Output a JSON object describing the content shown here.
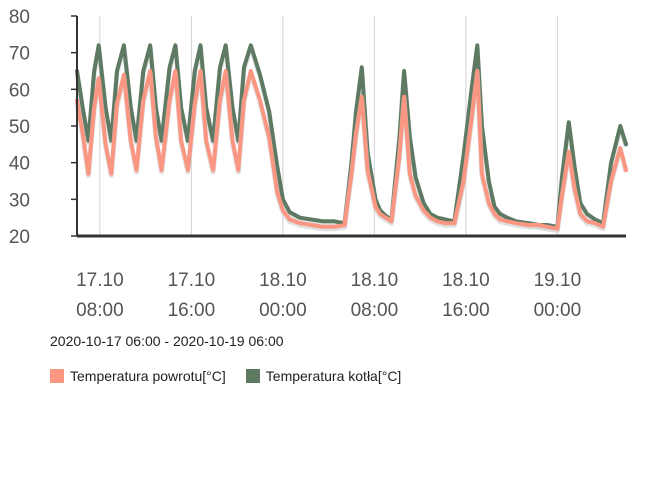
{
  "chart_data": {
    "type": "line",
    "title": "",
    "xlabel": "",
    "ylabel": "",
    "ylim": [
      20,
      80
    ],
    "yticks": [
      "20",
      "30",
      "40",
      "50",
      "60",
      "70",
      "80"
    ],
    "xlim": [
      0,
      48
    ],
    "xticks": [
      {
        "h": 2,
        "line1": "17.10",
        "line2": "08:00"
      },
      {
        "h": 10,
        "line1": "17.10",
        "line2": "16:00"
      },
      {
        "h": 18,
        "line1": "18.10",
        "line2": "00:00"
      },
      {
        "h": 26,
        "line1": "18.10",
        "line2": "08:00"
      },
      {
        "h": 34,
        "line1": "18.10",
        "line2": "16:00"
      },
      {
        "h": 42,
        "line1": "19.10",
        "line2": "00:00"
      }
    ],
    "x_hours": [
      0.0,
      0.5,
      1.0,
      1.5,
      1.9,
      2.5,
      3.0,
      3.5,
      4.1,
      4.7,
      5.2,
      5.8,
      6.4,
      6.9,
      7.4,
      8.1,
      8.6,
      9.1,
      9.7,
      10.3,
      10.8,
      11.3,
      11.9,
      12.5,
      13.0,
      13.6,
      14.1,
      14.6,
      15.2,
      16.0,
      16.8,
      17.5,
      18.0,
      18.6,
      19.5,
      20.5,
      21.5,
      22.5,
      23.4,
      24.0,
      24.4,
      24.9,
      25.4,
      26.1,
      26.5,
      27.0,
      27.5,
      28.2,
      28.6,
      29.1,
      29.6,
      30.3,
      30.9,
      31.5,
      32.2,
      33.0,
      33.8,
      34.5,
      35.0,
      35.4,
      36.0,
      36.5,
      37.0,
      37.6,
      38.4,
      39.5,
      40.4,
      41.1,
      42.0,
      42.4,
      43.0,
      43.5,
      44.0,
      44.6,
      45.3,
      46.0,
      46.7,
      47.5,
      48.0
    ],
    "series": [
      {
        "name": "Temperatura powrotu[°C]",
        "color": "#fa9682",
        "values": [
          57,
          48,
          37,
          55,
          63,
          45,
          37,
          56,
          64,
          46,
          38,
          57,
          65,
          47,
          38,
          57,
          65,
          46,
          38,
          56,
          65,
          46,
          38,
          57,
          65,
          46,
          38,
          57,
          65,
          57,
          47,
          32,
          27,
          24.5,
          23.5,
          23,
          22.5,
          22.5,
          23,
          37,
          48,
          58,
          38,
          28,
          26,
          25,
          24,
          42,
          58,
          37,
          31,
          27,
          25,
          24,
          23.5,
          23.5,
          35,
          52,
          65,
          37,
          29,
          26,
          24.5,
          24,
          23.5,
          23,
          23,
          22.5,
          22,
          31,
          43,
          33,
          26,
          24,
          23.5,
          22.5,
          35,
          44,
          38
        ]
      },
      {
        "name": "Temperatura kotła[°C]",
        "color": "#5e7a62",
        "values": [
          65,
          55,
          46,
          65,
          72,
          55,
          46,
          65,
          72,
          55,
          46,
          65,
          72,
          55,
          46,
          66,
          72,
          55,
          46,
          65,
          72,
          55,
          46,
          66,
          72,
          55,
          46,
          66,
          72,
          64,
          54,
          39,
          30,
          26.5,
          25,
          24.5,
          24,
          24,
          23.5,
          40,
          54,
          66,
          43,
          30,
          27,
          25.5,
          24.5,
          47,
          65,
          47,
          36,
          29,
          26,
          25,
          24.5,
          24,
          42,
          60,
          72,
          50,
          35,
          28,
          26,
          25,
          24,
          23.5,
          23,
          23,
          22.5,
          36,
          51,
          39,
          29,
          26,
          24.5,
          23.5,
          40,
          50,
          45
        ]
      }
    ],
    "legend_position": "bottom-left"
  },
  "range_label": "2020-10-17 06:00 - 2020-10-19 06:00"
}
